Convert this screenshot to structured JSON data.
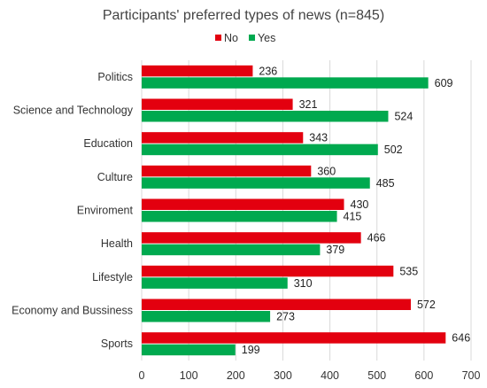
{
  "chart_data": {
    "type": "bar",
    "orientation": "horizontal",
    "title": "Participants' preferred types of news (n=845)",
    "categories": [
      "Politics",
      "Science and Technology",
      "Education",
      "Culture",
      "Enviroment",
      "Health",
      "Lifestyle",
      "Economy and Bussiness",
      "Sports"
    ],
    "series": [
      {
        "name": "No",
        "color": "#e3000f",
        "values": [
          236,
          321,
          343,
          360,
          430,
          466,
          535,
          572,
          646
        ]
      },
      {
        "name": "Yes",
        "color": "#00a94f",
        "values": [
          609,
          524,
          502,
          485,
          415,
          379,
          310,
          273,
          199
        ]
      }
    ],
    "xlim": [
      0,
      700
    ],
    "xticks": [
      0,
      100,
      200,
      300,
      400,
      500,
      600,
      700
    ],
    "xlabel": "",
    "ylabel": "",
    "grid": true,
    "legend_position": "top-center",
    "data_labels": true
  }
}
